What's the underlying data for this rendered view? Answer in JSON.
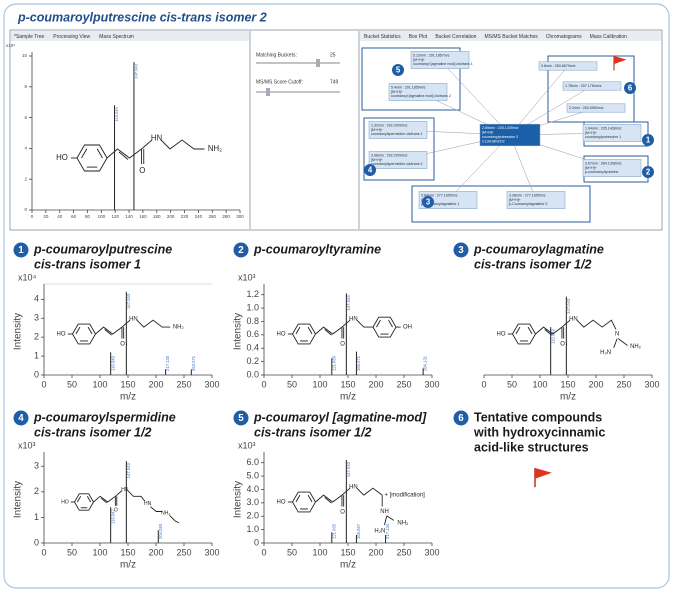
{
  "header": {
    "title": "p-coumaroylputrescine cis-trans isomer 2"
  },
  "screenshot": {
    "tabs_left": [
      "*Sample Tree",
      "Processing View",
      "Mass Spectrum"
    ],
    "tabs_right": [
      "Bucket Statistics",
      "Box Plot",
      "Bucket Correlation",
      "MS/MS Bucket Matches",
      "Chromatograms",
      "Mass Calibration"
    ],
    "controls": {
      "matching_label": "Matching Buckets:",
      "matching_value": "25",
      "score_label": "MS/MS Score Cutoff:",
      "score_value": "749"
    },
    "network": {
      "nodes": [
        {
          "lines": [
            "2.69min : 235.1439m/z",
            "[M+H]+",
            "coumaroylputrescine 2",
            "C13H18N2O2"
          ]
        },
        {
          "lines": [
            "5.13min : 291.1857m/z",
            "[M+H]+",
            "coumaroyl [agmatine mod] cis/trans 1"
          ]
        },
        {
          "lines": [
            "5.4min : 291.1859m/z",
            "[M+H]+",
            "coumaroyl [agmatine mod] cis/trans 2"
          ]
        },
        {
          "lines": [
            "1.32min : 292.2009m/z",
            "[M+H]+",
            "coumaroylspermidine cis/trans 1"
          ]
        },
        {
          "lines": [
            "3.08min : 292.2009m/z",
            "[M+H]+",
            "coumaroylspermidine cis/trans 2"
          ]
        },
        {
          "lines": [
            "3.84min : 277.1659m/z",
            "[M+H]+",
            "p-Coumaroylagmatine 1"
          ]
        },
        {
          "lines": [
            "3.38min : 277.1659m/z",
            "[M+H]+",
            "p-Coumaroylagmatine 2"
          ]
        },
        {
          "lines": [
            "1.94min : 235.1438m/z",
            "[M+H]+",
            "coumaroylputrescine 1"
          ]
        },
        {
          "lines": [
            "3.67min : 284.1308m/z",
            "[M+H]+",
            "p-coumaroyltyramine"
          ]
        },
        {
          "lines": [
            "0.8min : 263.6679m/z"
          ]
        },
        {
          "lines": [
            "1.78min : 307.1784m/z"
          ]
        },
        {
          "lines": [
            "2.2min : 263.0983m/z"
          ]
        }
      ],
      "groups": [
        5,
        4,
        3,
        1,
        2,
        6
      ]
    }
  },
  "chart_data": [
    {
      "type": "bar",
      "y_scale_label": "x10⁴",
      "xlim": [
        0,
        300
      ],
      "xticks": [
        0,
        20,
        40,
        60,
        80,
        100,
        120,
        140,
        160,
        180,
        200,
        220,
        240,
        260,
        280,
        300
      ],
      "ylim": [
        0,
        10
      ],
      "yticks": [
        0,
        2,
        4,
        6,
        8,
        10
      ],
      "x": [
        119.049,
        147.043
      ],
      "values": [
        6.8,
        9.6
      ],
      "color": "#222222",
      "structure": [
        "HO",
        "O",
        "HN",
        "NH₂"
      ]
    },
    {
      "type": "bar",
      "number": 1,
      "title": [
        "p-coumaroylputrescine",
        "cis-trans isomer 1"
      ],
      "y_scale_label": "x10⁴",
      "xlabel": "m/z",
      "ylabel": "Intensity",
      "xlim": [
        0,
        300
      ],
      "xticks": [
        0,
        50,
        100,
        150,
        200,
        250,
        300
      ],
      "ylim": [
        0,
        4.6
      ],
      "yticks": [
        0,
        1,
        2,
        3,
        4
      ],
      "x": [
        119.049,
        147.043,
        217.133,
        263.071
      ],
      "values": [
        1.2,
        4.4,
        0.3,
        0.3
      ],
      "color": "#222222",
      "structure": [
        "HO",
        "O",
        "HN",
        "NH₂"
      ]
    },
    {
      "type": "bar",
      "number": 2,
      "title": [
        "p-coumaroyltyramine"
      ],
      "y_scale_label": "x10³",
      "xlabel": "m/z",
      "ylabel": "Intensity",
      "xlim": [
        0,
        300
      ],
      "xticks": [
        0,
        50,
        100,
        150,
        200,
        250,
        300
      ],
      "ylim": [
        0,
        1.3
      ],
      "yticks": [
        {
          "value": 0,
          "label": "0.0"
        },
        0.2,
        0.4,
        0.6,
        0.8,
        {
          "value": 1,
          "label": "1.0"
        },
        1.2
      ],
      "x": [
        121.065,
        147.043,
        165.071,
        284.131
      ],
      "values": [
        0.25,
        1.22,
        0.35,
        0.1
      ],
      "color": "#222222",
      "structure": [
        "HO",
        "O",
        "HN",
        "OH"
      ]
    },
    {
      "type": "bar",
      "number": 3,
      "title": [
        "p-coumaroylagmatine",
        "cis-trans isomer 1/2"
      ],
      "xlabel": "m/z",
      "xlim": [
        0,
        300
      ],
      "xticks": [
        0,
        50,
        100,
        150,
        200,
        250,
        300
      ],
      "ylim": [
        0,
        1
      ],
      "x": [
        119.049,
        147.043
      ],
      "values": [
        0.55,
        0.9
      ],
      "color": "#222222",
      "structure": [
        "HO",
        "O",
        "HN",
        "N",
        "NH₂",
        "H₂N"
      ]
    },
    {
      "type": "bar",
      "number": 4,
      "title": [
        "p-coumaroylspermidine",
        "cis-trans isomer 1/2"
      ],
      "y_scale_label": "x10³",
      "xlabel": "m/z",
      "ylabel": "Intensity",
      "xlim": [
        0,
        300
      ],
      "xticks": [
        0,
        50,
        100,
        150,
        200,
        250,
        300
      ],
      "ylim": [
        0,
        3.4
      ],
      "yticks": [
        0,
        1,
        2,
        3
      ],
      "x": [
        119.047,
        147.043,
        204.093
      ],
      "values": [
        1.4,
        3.2,
        0.5
      ],
      "color": "#222222",
      "structure": [
        "HO",
        "O",
        "HN",
        "HN",
        "NH₂"
      ]
    },
    {
      "type": "bar",
      "number": 5,
      "title": [
        "p-coumaroyl [agmatine-mod]",
        "cis-trans isomer 1/2"
      ],
      "y_scale_label": "x10³",
      "xlabel": "m/z",
      "ylabel": "Intensity",
      "xlim": [
        0,
        300
      ],
      "xticks": [
        0,
        50,
        100,
        150,
        200,
        250,
        300
      ],
      "ylim": [
        0,
        6.5
      ],
      "yticks": [
        0,
        {
          "value": 1,
          "label": "1.0"
        },
        {
          "value": 2,
          "label": "2.0"
        },
        {
          "value": 3,
          "label": "3.0"
        },
        {
          "value": 4,
          "label": "4.0"
        },
        {
          "value": 5,
          "label": "5.0"
        },
        {
          "value": 6,
          "label": "6.0"
        }
      ],
      "x": [
        121.065,
        147.043,
        165.057,
        217.134
      ],
      "values": [
        0.8,
        6.2,
        0.6,
        0.6
      ],
      "color": "#222222",
      "structure": [
        "HO",
        "O",
        "HN",
        "+ [modification]",
        "NH",
        "NH₂",
        "H₂N"
      ]
    }
  ],
  "panel_6": {
    "number": 6,
    "lines": [
      "Tentative compounds",
      "with hydroxycinnamic",
      "acid-like structures"
    ]
  }
}
